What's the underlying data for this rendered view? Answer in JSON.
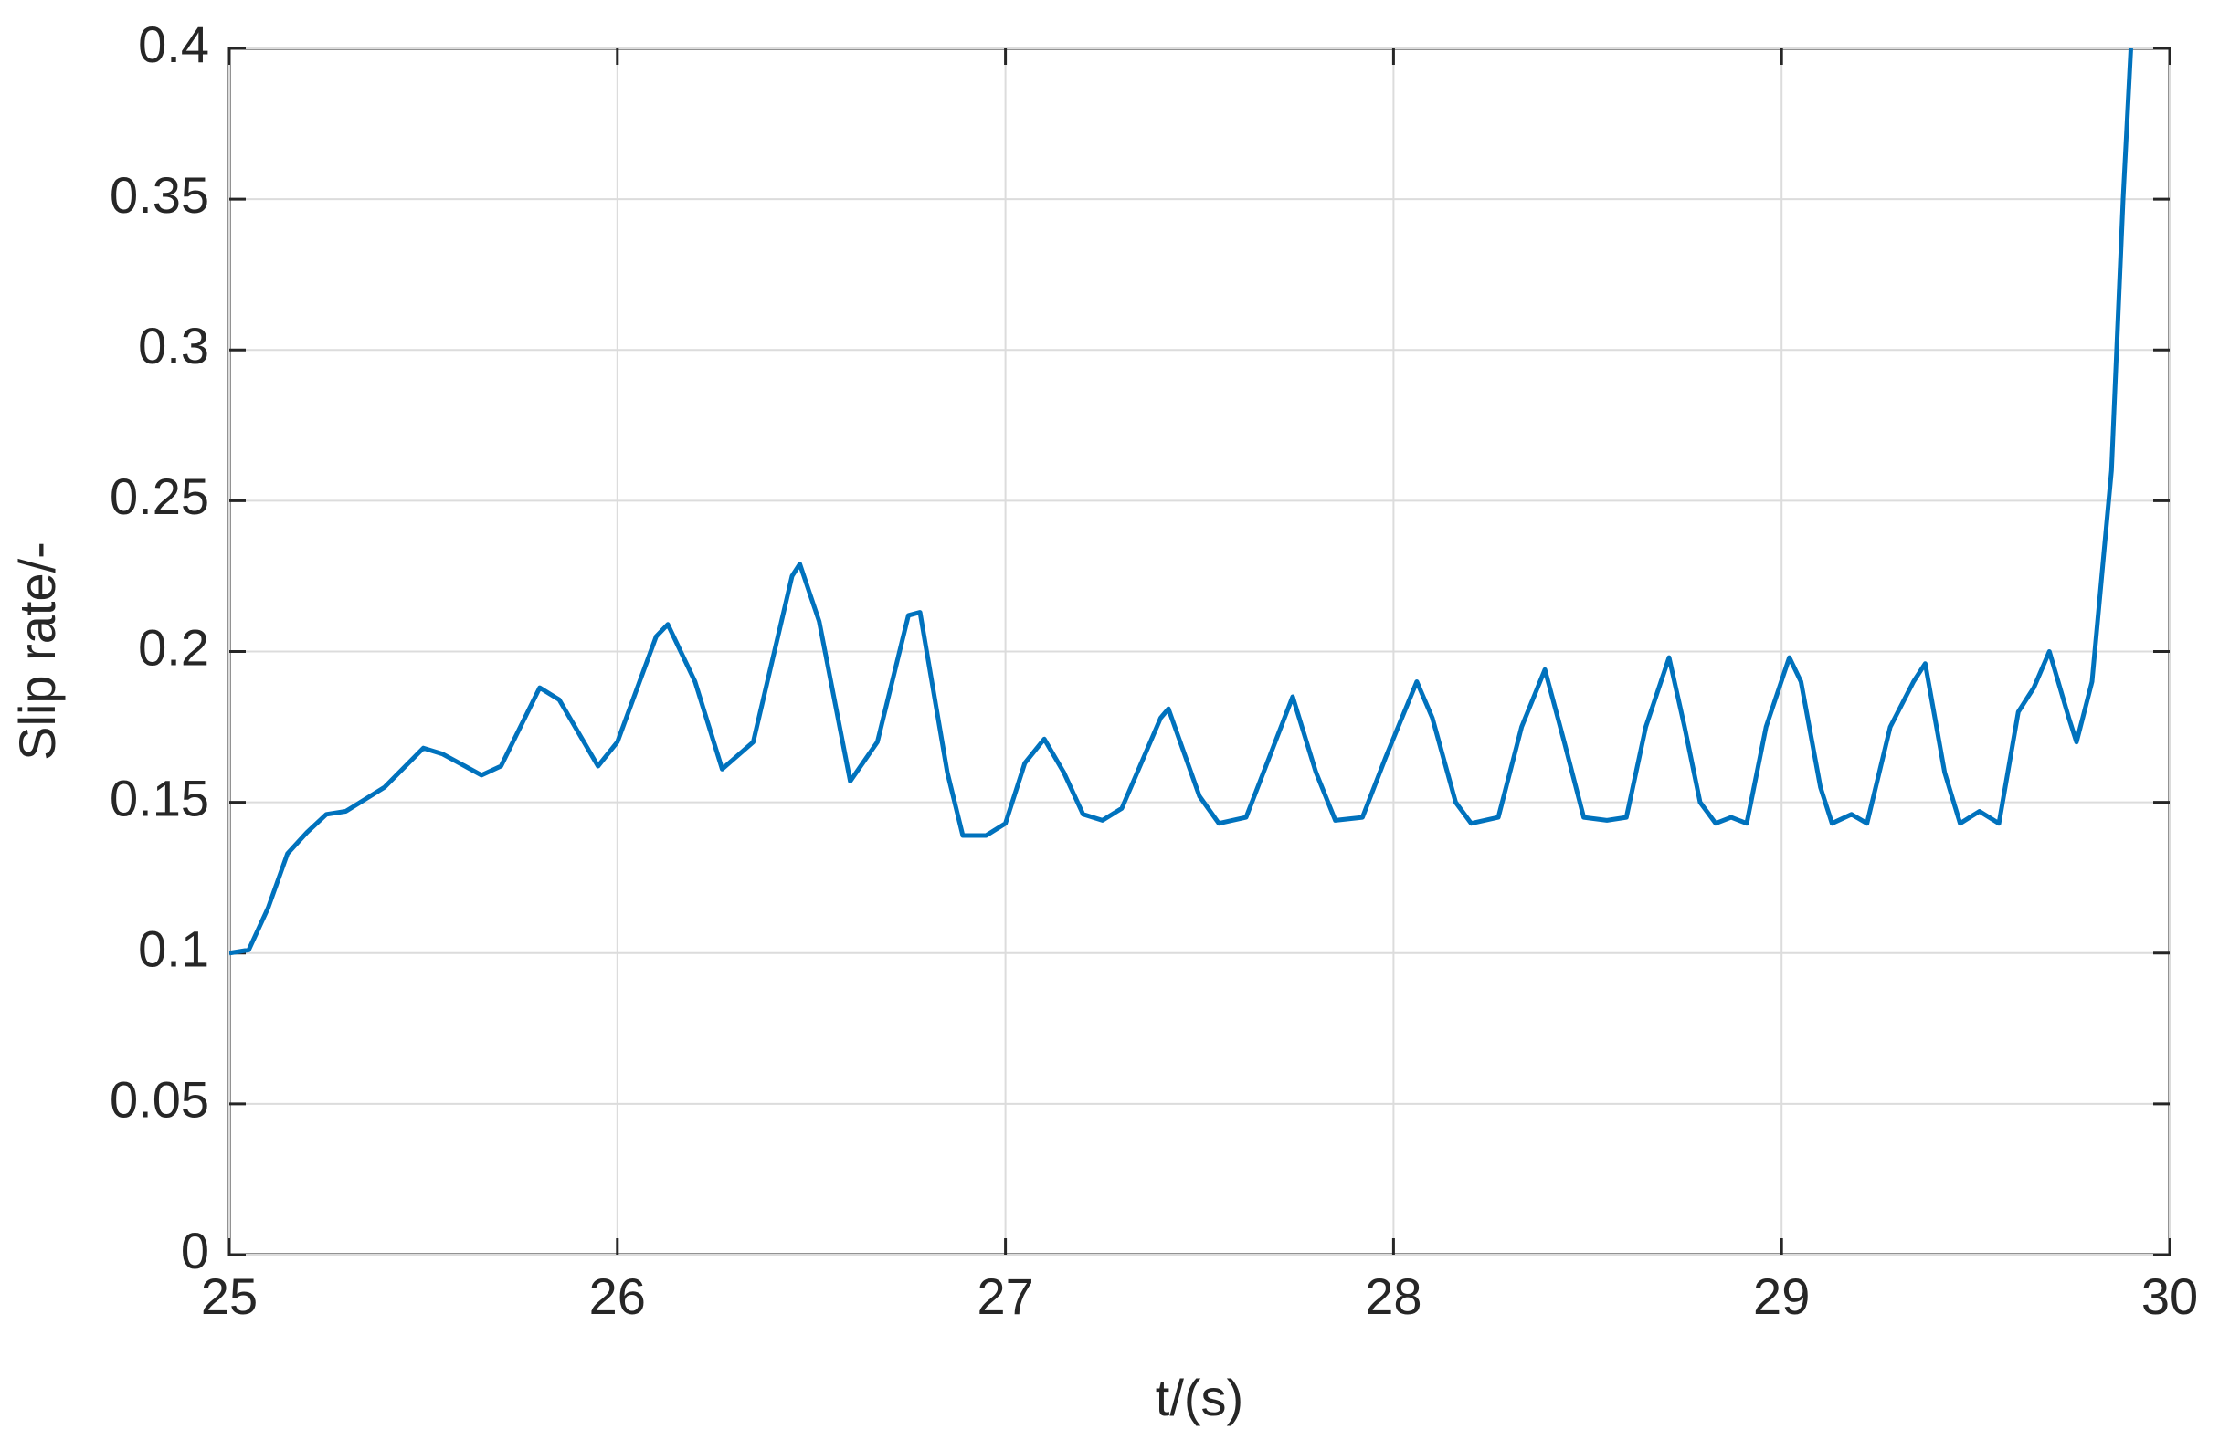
{
  "chart_data": {
    "type": "line",
    "xlabel": "t/(s)",
    "ylabel": "Slip rate/-",
    "xlim": [
      25,
      30
    ],
    "ylim": [
      0,
      0.4
    ],
    "xticks": [
      25,
      26,
      27,
      28,
      29,
      30
    ],
    "yticks": [
      0,
      0.05,
      0.1,
      0.15,
      0.2,
      0.25,
      0.3,
      0.35,
      0.4
    ],
    "grid": true,
    "series": [
      {
        "color": "#0072bd",
        "x": [
          25.0,
          25.05,
          25.1,
          25.15,
          25.2,
          25.25,
          25.3,
          25.4,
          25.5,
          25.55,
          25.65,
          25.7,
          25.8,
          25.85,
          25.95,
          26.0,
          26.1,
          26.13,
          26.2,
          26.27,
          26.35,
          26.45,
          26.47,
          26.52,
          26.6,
          26.67,
          26.75,
          26.78,
          26.85,
          26.89,
          26.95,
          27.0,
          27.05,
          27.1,
          27.15,
          27.2,
          27.25,
          27.3,
          27.4,
          27.42,
          27.5,
          27.55,
          27.62,
          27.68,
          27.74,
          27.8,
          27.85,
          27.92,
          27.98,
          28.06,
          28.1,
          28.16,
          28.2,
          28.27,
          28.33,
          28.39,
          28.44,
          28.49,
          28.55,
          28.6,
          28.65,
          28.71,
          28.75,
          28.79,
          28.83,
          28.87,
          28.91,
          28.96,
          29.02,
          29.05,
          29.1,
          29.13,
          29.18,
          29.22,
          29.28,
          29.34,
          29.37,
          29.42,
          29.46,
          29.51,
          29.56,
          29.61,
          29.65,
          29.69,
          29.74,
          29.76,
          29.8,
          29.85,
          29.88,
          29.9
        ],
        "values": [
          0.1,
          0.101,
          0.115,
          0.133,
          0.14,
          0.146,
          0.147,
          0.155,
          0.168,
          0.166,
          0.159,
          0.162,
          0.188,
          0.184,
          0.162,
          0.17,
          0.205,
          0.209,
          0.19,
          0.161,
          0.17,
          0.225,
          0.229,
          0.21,
          0.157,
          0.17,
          0.212,
          0.213,
          0.16,
          0.139,
          0.139,
          0.143,
          0.163,
          0.171,
          0.16,
          0.146,
          0.144,
          0.148,
          0.178,
          0.181,
          0.152,
          0.143,
          0.145,
          0.165,
          0.185,
          0.16,
          0.144,
          0.145,
          0.165,
          0.19,
          0.178,
          0.15,
          0.143,
          0.145,
          0.175,
          0.194,
          0.17,
          0.145,
          0.144,
          0.145,
          0.175,
          0.198,
          0.175,
          0.15,
          0.143,
          0.145,
          0.143,
          0.175,
          0.198,
          0.19,
          0.155,
          0.143,
          0.146,
          0.143,
          0.175,
          0.19,
          0.196,
          0.16,
          0.143,
          0.147,
          0.143,
          0.18,
          0.188,
          0.2,
          0.178,
          0.17,
          0.19,
          0.26,
          0.35,
          0.4
        ]
      }
    ]
  }
}
